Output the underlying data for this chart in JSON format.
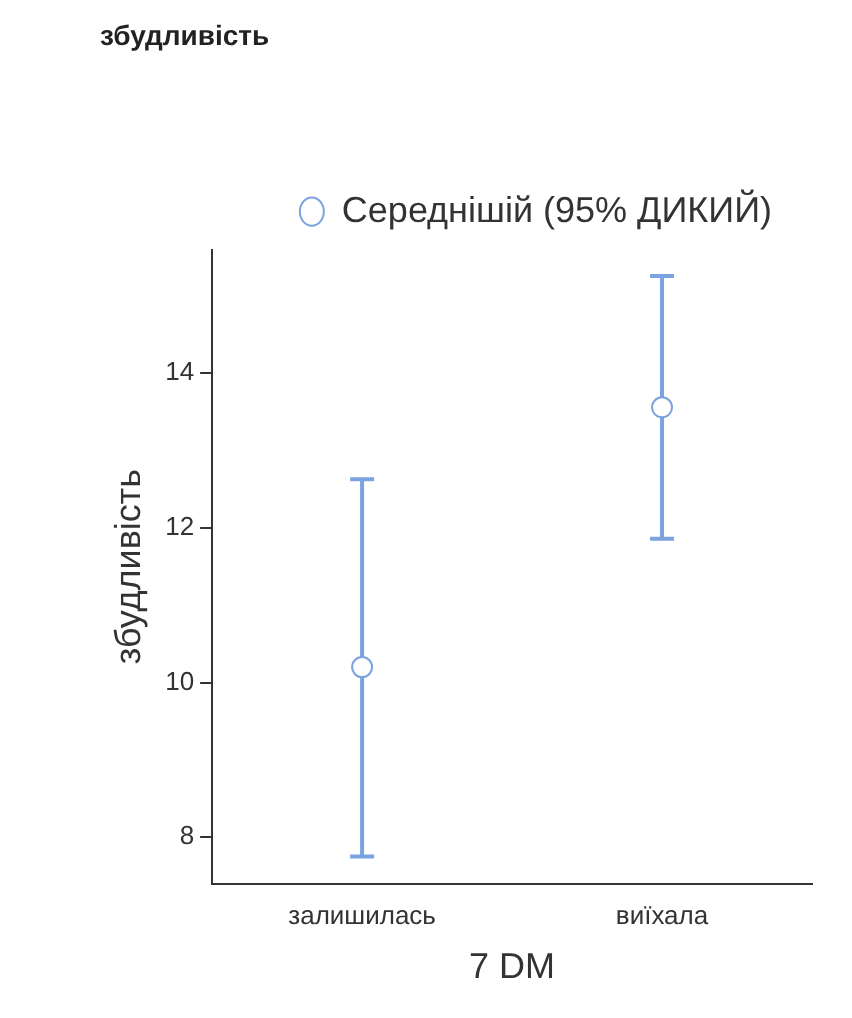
{
  "chart_data": {
    "type": "scatter",
    "title": "збудливість",
    "xlabel": "7 DM",
    "ylabel": "збудливість",
    "categories": [
      "залишилась",
      "виїхала"
    ],
    "series": [
      {
        "name": "Середнішій (95% ДИКИЙ)",
        "color": "#7ba3e0",
        "values": [
          10.2,
          13.56
        ],
        "errors": [
          [
            7.75,
            12.63
          ],
          [
            11.86,
            15.26
          ]
        ]
      }
    ],
    "ylim": [
      7.4,
      15.6
    ],
    "yticks": [
      8,
      10,
      12,
      14
    ],
    "grid": false,
    "legend": "top",
    "marker": "circle"
  }
}
